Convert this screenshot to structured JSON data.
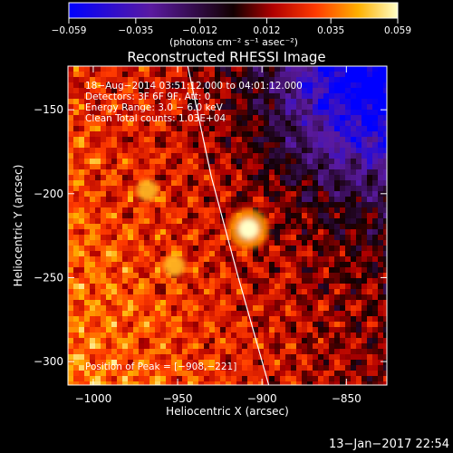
{
  "chart_data": {
    "type": "heatmap",
    "title": "Reconstructed RHESSI Image",
    "xlabel": "Heliocentric X (arcsec)",
    "ylabel": "Heliocentric Y (arcsec)",
    "xlim": [
      -1015,
      -826
    ],
    "ylim": [
      -314,
      -124
    ],
    "x_ticks": [
      {
        "v": -1000,
        "label": "−1000"
      },
      {
        "v": -950,
        "label": "−950"
      },
      {
        "v": -900,
        "label": "−900"
      },
      {
        "v": -850,
        "label": "−850"
      }
    ],
    "y_ticks": [
      {
        "v": -150,
        "label": "−150"
      },
      {
        "v": -200,
        "label": "−200"
      },
      {
        "v": -250,
        "label": "−250"
      },
      {
        "v": -300,
        "label": "−300"
      }
    ],
    "colorbar": {
      "min": -0.059,
      "max": 0.059,
      "ticks": [
        {
          "v": -0.059,
          "label": "−0.059"
        },
        {
          "v": -0.035,
          "label": "−0.035"
        },
        {
          "v": -0.012,
          "label": "−0.012"
        },
        {
          "v": 0.012,
          "label": "0.012"
        },
        {
          "v": 0.035,
          "label": "0.035"
        },
        {
          "v": 0.059,
          "label": "0.059"
        }
      ],
      "unit_label": "(photons cm⁻² s⁻¹ asec⁻²)"
    },
    "info_lines": [
      "18−Aug−2014 03:51:12.000 to 04:01:12.000",
      "Detectors: 3F 6F 9F, Att: 0",
      "Energy Range: 3.0 − 6.0 keV",
      "Clean    Total counts: 1.03E+04"
    ],
    "peak_label": "Position of Peak = [−908,−221]",
    "peak": {
      "x": -908,
      "y": -221
    },
    "secondary_sources": [
      {
        "x": -952,
        "y": -243
      },
      {
        "x": -968,
        "y": -198
      }
    ],
    "limb": [
      [
        -944,
        -124
      ],
      [
        -930,
        -190
      ],
      [
        -914,
        -250
      ],
      [
        -896,
        -314
      ]
    ],
    "timestamp": "13−Jan−2017 22:54"
  }
}
